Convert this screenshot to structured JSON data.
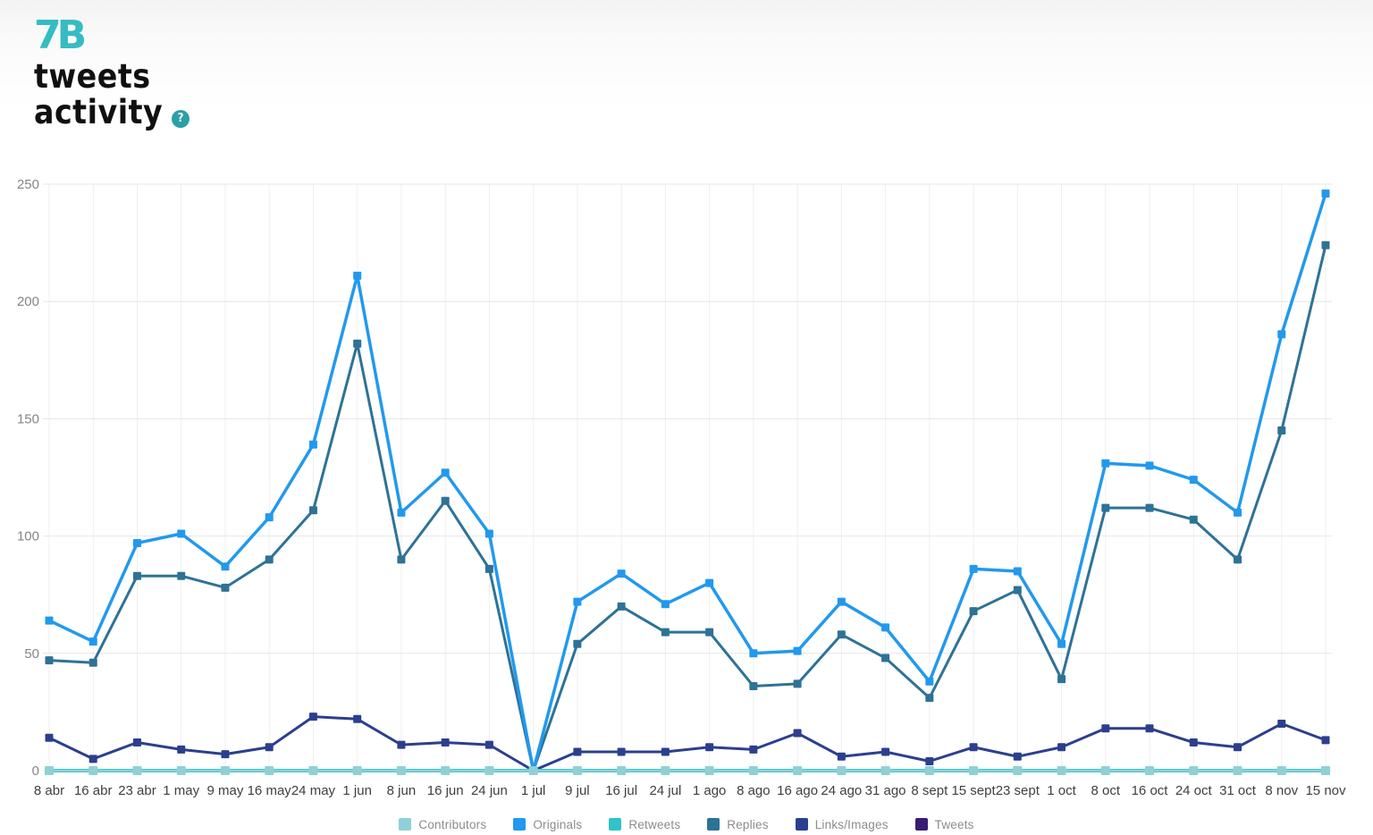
{
  "header": {
    "logo_text": "7B",
    "title_line1": "tweets",
    "title_line2": "activity",
    "help_label": "?"
  },
  "brand": {
    "teal": "#35bcc2",
    "help_circle": "#2aa0a6",
    "title_color": "#101010"
  },
  "chart_data": {
    "type": "line",
    "title": "tweets activity",
    "xlabel": "",
    "ylabel": "",
    "ylim": [
      0,
      250
    ],
    "yticks": [
      0,
      50,
      100,
      150,
      200,
      250
    ],
    "grid": true,
    "legend_position": "bottom",
    "x_labels": [
      "8 abr",
      "16 abr",
      "23 abr",
      "1 may",
      "9 may",
      "16 may",
      "24 may",
      "1 jun",
      "8 jun",
      "16 jun",
      "24 jun",
      "1 jul",
      "9 jul",
      "16 jul",
      "24 jul",
      "1 ago",
      "8 ago",
      "16 ago",
      "24 ago",
      "31 ago",
      "8 sept",
      "15 sept",
      "23 sept",
      "1 oct",
      "8 oct",
      "16 oct",
      "24 oct",
      "31 oct",
      "8 nov",
      "15 nov"
    ],
    "series": [
      {
        "name": "Contributors",
        "color": "#8fd0d6",
        "marker": 10,
        "width": 2.5,
        "values": [
          0,
          0,
          0,
          0,
          0,
          0,
          0,
          0,
          0,
          0,
          0,
          0,
          0,
          0,
          0,
          0,
          0,
          0,
          0,
          0,
          0,
          0,
          0,
          0,
          0,
          0,
          0,
          0,
          0,
          0
        ]
      },
      {
        "name": "Originals",
        "color": "#2199ee",
        "marker": 9,
        "width": 3.5,
        "values": [
          64,
          55,
          97,
          101,
          87,
          108,
          139,
          211,
          110,
          127,
          101,
          0,
          72,
          84,
          71,
          80,
          50,
          51,
          72,
          61,
          38,
          86,
          85,
          54,
          131,
          130,
          124,
          110,
          186,
          246
        ]
      },
      {
        "name": "Retweets",
        "color": "#30c3ca",
        "marker": 8,
        "width": 4,
        "values": [
          0,
          0,
          0,
          0,
          0,
          0,
          0,
          0,
          0,
          0,
          0,
          0,
          0,
          0,
          0,
          0,
          0,
          0,
          0,
          0,
          0,
          0,
          0,
          0,
          0,
          0,
          0,
          0,
          0,
          0
        ]
      },
      {
        "name": "Replies",
        "color": "#2e7296",
        "marker": 9,
        "width": 3,
        "values": [
          47,
          46,
          83,
          83,
          78,
          90,
          111,
          182,
          90,
          115,
          86,
          0,
          54,
          70,
          59,
          59,
          36,
          37,
          58,
          48,
          31,
          68,
          77,
          39,
          112,
          112,
          107,
          90,
          145,
          224
        ]
      },
      {
        "name": "Links/Images",
        "color": "#2c3f8e",
        "marker": 9,
        "width": 3,
        "values": [
          14,
          5,
          12,
          9,
          7,
          10,
          23,
          22,
          11,
          12,
          11,
          0,
          8,
          8,
          8,
          10,
          9,
          16,
          6,
          8,
          4,
          10,
          6,
          10,
          18,
          18,
          12,
          10,
          20,
          13
        ]
      },
      {
        "name": "Tweets",
        "color": "#371e73",
        "marker": 6,
        "width": 2,
        "values": [
          0,
          0,
          0,
          0,
          0,
          0,
          0,
          0,
          0,
          0,
          0,
          0,
          0,
          0,
          0,
          0,
          0,
          0,
          0,
          0,
          0,
          0,
          0,
          0,
          0,
          0,
          0,
          0,
          0,
          0
        ]
      }
    ],
    "axis_style": {
      "y_tick_color": "#858585",
      "x_tick_color": "#3f3f3f",
      "h_grid_color": "#e5e5e5",
      "v_grid_color": "#efefef"
    }
  }
}
